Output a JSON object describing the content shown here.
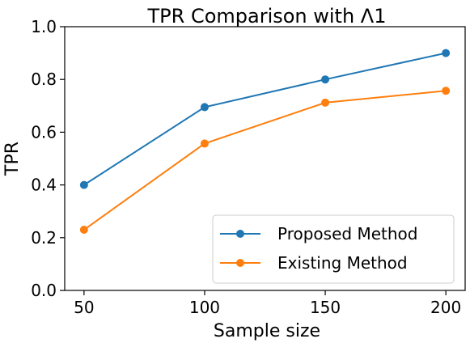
{
  "chart_data": {
    "type": "line",
    "title": "TPR Comparison with Λ1",
    "xlabel": "Sample size",
    "ylabel": "TPR",
    "x": [
      50,
      100,
      150,
      200
    ],
    "x_ticks": [
      "50",
      "100",
      "150",
      "200"
    ],
    "y_ticks": [
      "0.0",
      "0.2",
      "0.4",
      "0.6",
      "0.8",
      "1.0"
    ],
    "xlim": [
      42,
      208
    ],
    "ylim": [
      0.0,
      1.0
    ],
    "grid": false,
    "legend_position": "lower-right",
    "series": [
      {
        "name": "Proposed Method",
        "color": "#1f77b4",
        "values": [
          0.4,
          0.695,
          0.8,
          0.9
        ]
      },
      {
        "name": "Existing Method",
        "color": "#ff7f0e",
        "values": [
          0.23,
          0.557,
          0.712,
          0.757
        ]
      }
    ]
  }
}
